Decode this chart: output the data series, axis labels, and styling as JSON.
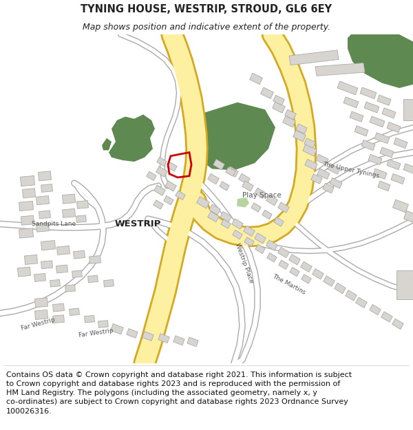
{
  "title": "TYNING HOUSE, WESTRIP, STROUD, GL6 6EY",
  "subtitle": "Map shows position and indicative extent of the property.",
  "copyright": "Contains OS data © Crown copyright and database right 2021. This information is subject\nto Crown copyright and database rights 2023 and is reproduced with the permission of\nHM Land Registry. The polygons (including the associated geometry, namely x, y\nco-ordinates) are subject to Crown copyright and database rights 2023 Ordnance Survey\n100026316.",
  "map_bg": "#ffffff",
  "road_yellow_fill": "#fdf0a0",
  "road_yellow_edge": "#d4a820",
  "road_white_fill": "#ffffff",
  "road_white_edge": "#aaaaaa",
  "building_fill": "#d8d5d0",
  "building_edge": "#aaaaaa",
  "green_dark": "#5e8a52",
  "green_light": "#b5d4a0",
  "plot_red": "#cc0000",
  "text_dark": "#222222",
  "text_label": "#555555",
  "title_fontsize": 10.5,
  "subtitle_fontsize": 9.0,
  "label_fontsize": 7.5,
  "small_label_fontsize": 6.5,
  "copyright_fontsize": 8.0
}
